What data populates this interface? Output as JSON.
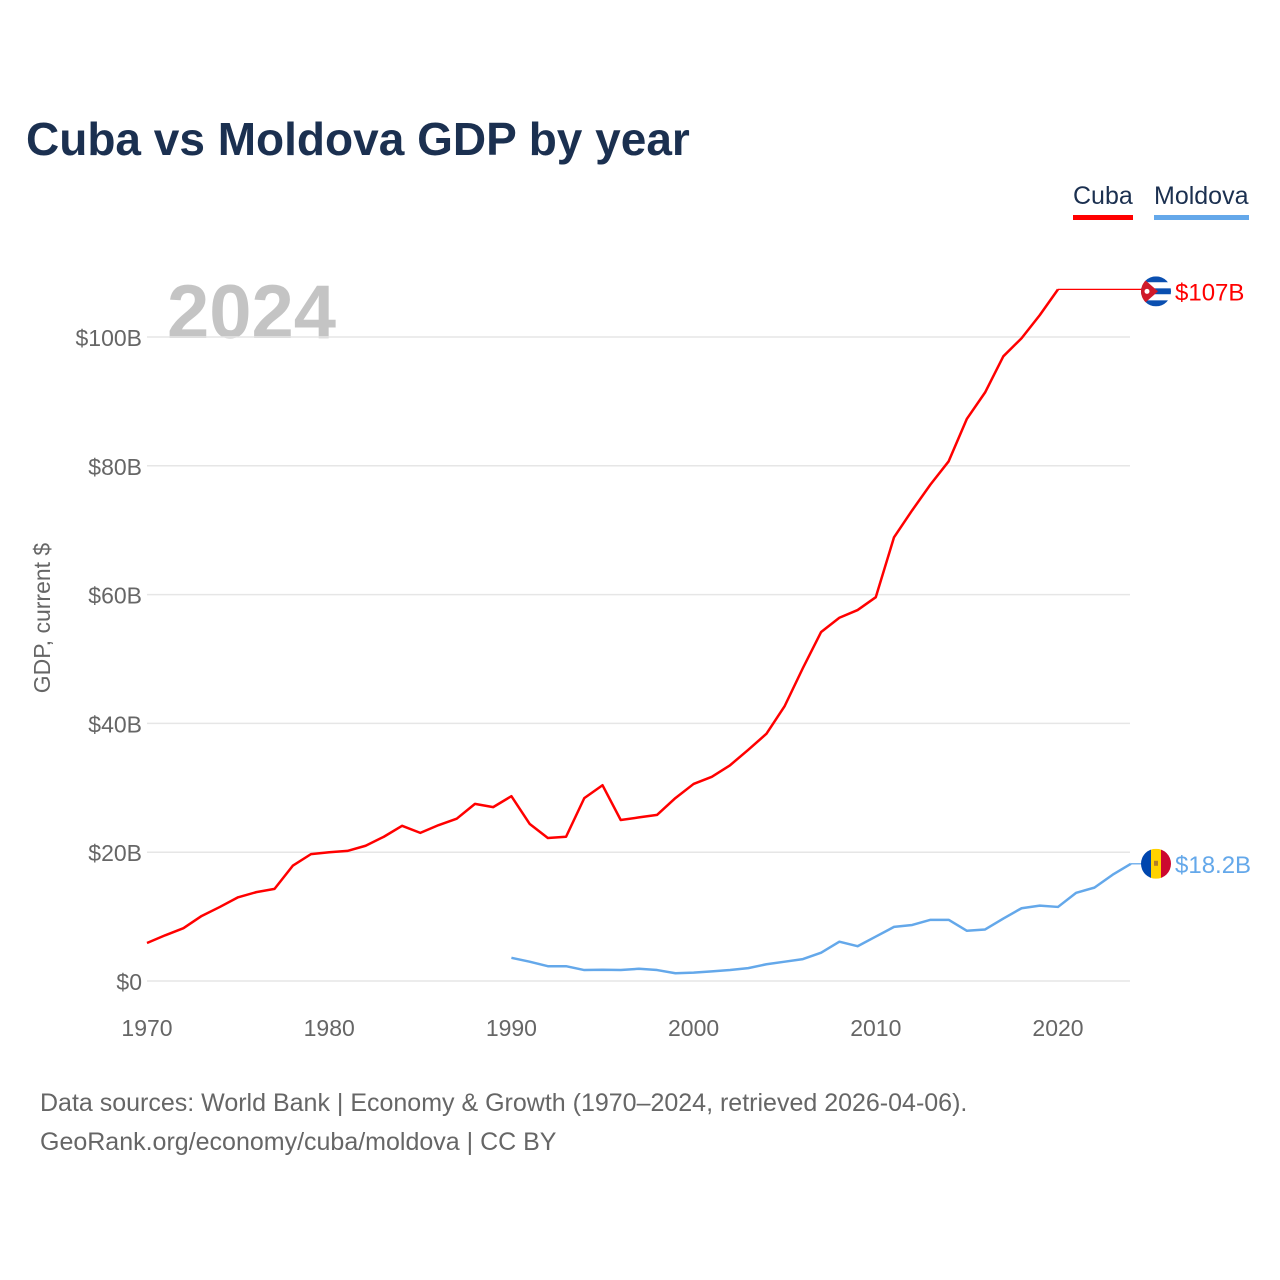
{
  "chart_data": {
    "type": "line",
    "title": "Cuba vs Moldova GDP by year",
    "ylabel": "GDP, current $",
    "xlabel": "",
    "year_watermark": "2024",
    "xlim": [
      1970,
      2024
    ],
    "ylim": [
      0,
      110
    ],
    "x_ticks": [
      1970,
      1980,
      1990,
      2000,
      2010,
      2020
    ],
    "y_ticks": [
      {
        "v": 0,
        "label": "$0"
      },
      {
        "v": 20,
        "label": "$20B"
      },
      {
        "v": 40,
        "label": "$40B"
      },
      {
        "v": 60,
        "label": "$60B"
      },
      {
        "v": 80,
        "label": "$80B"
      },
      {
        "v": 100,
        "label": "$100B"
      }
    ],
    "grid": true,
    "legend_position": "top-right",
    "series": [
      {
        "name": "Cuba",
        "color": "#ff0000",
        "end_label": "$107B",
        "start": 1970,
        "values": [
          5.9,
          7.1,
          8.2,
          10.1,
          11.5,
          13.0,
          13.8,
          14.3,
          17.9,
          19.7,
          20.0,
          20.2,
          21.0,
          22.4,
          24.1,
          23.0,
          24.2,
          25.2,
          27.5,
          27.0,
          28.7,
          24.4,
          22.2,
          22.4,
          28.4,
          30.4,
          25.0,
          25.4,
          25.8,
          28.4,
          30.6,
          31.7,
          33.5,
          35.9,
          38.4,
          42.7,
          48.6,
          54.2,
          56.4,
          57.6,
          59.6,
          68.9,
          73.1,
          77.1,
          80.7,
          87.3,
          91.4,
          97.0,
          99.8,
          103.4,
          107.4
        ]
      },
      {
        "name": "Moldova",
        "color": "#64a8ea",
        "end_label": "$18.2B",
        "start": 1990,
        "values": [
          3.6,
          3.0,
          2.3,
          2.3,
          1.7,
          1.75,
          1.7,
          1.9,
          1.7,
          1.2,
          1.3,
          1.5,
          1.7,
          2.0,
          2.6,
          3.0,
          3.4,
          4.4,
          6.1,
          5.4,
          6.9,
          8.4,
          8.7,
          9.5,
          9.5,
          7.8,
          8.0,
          9.7,
          11.3,
          11.7,
          11.5,
          13.7,
          14.5,
          16.5,
          18.2
        ]
      }
    ]
  },
  "footer": {
    "line1": "Data sources: World Bank | Economy & Growth (1970–2024, retrieved 2026-04-06).",
    "line2": "GeoRank.org/economy/cuba/moldova | CC BY"
  }
}
